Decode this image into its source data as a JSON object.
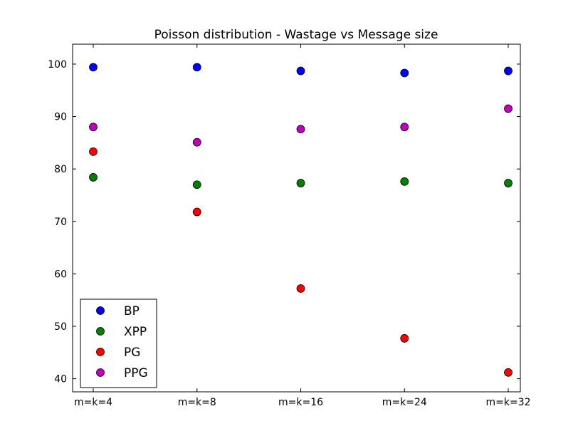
{
  "chart_data": {
    "type": "scatter",
    "title": "Poisson distribution - Wastage vs Message size",
    "xlabel": "",
    "ylabel": "",
    "categories": [
      "m=k=4",
      "m=k=8",
      "m=k=16",
      "m=k=24",
      "m=k=32"
    ],
    "ylim": [
      37.5,
      103.8
    ],
    "yticks": [
      40,
      50,
      60,
      70,
      80,
      90,
      100
    ],
    "grid": false,
    "legend_position": "lower-left",
    "series": [
      {
        "name": "BP",
        "color": "#0000ff",
        "values": [
          99.4,
          99.4,
          98.7,
          98.3,
          98.7
        ]
      },
      {
        "name": "XPP",
        "color": "#007f00",
        "values": [
          78.4,
          77.0,
          77.3,
          77.6,
          77.3
        ]
      },
      {
        "name": "PG",
        "color": "#ff0000",
        "values": [
          83.3,
          71.8,
          57.2,
          47.7,
          41.2
        ]
      },
      {
        "name": "PPG",
        "color": "#bf00bf",
        "values": [
          88.0,
          85.1,
          87.6,
          88.0,
          91.5
        ]
      }
    ]
  }
}
